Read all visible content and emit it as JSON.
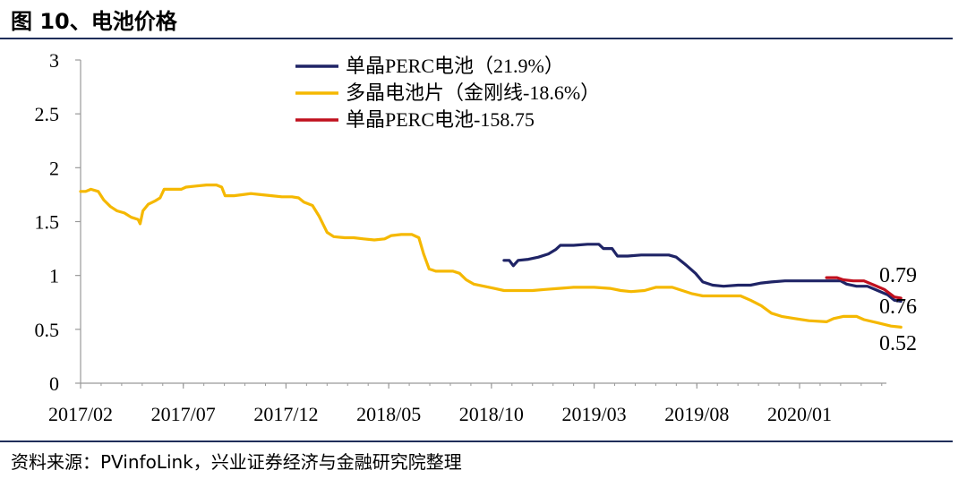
{
  "title": "图 10、电池价格",
  "source": "资料来源：PVinfoLink，兴业证券经济与金融研究院整理",
  "colors": {
    "accent_rule": "#1f2e5a",
    "mono": "#1f2466",
    "multi": "#f5b800",
    "mono158": "#c0101e"
  },
  "chart_data": {
    "type": "line",
    "ylim": [
      0,
      3
    ],
    "yticks": [
      "0",
      "0.5",
      "1",
      "1.5",
      "2",
      "2.5",
      "3"
    ],
    "x_range": [
      "2017-02",
      "2020-06"
    ],
    "xticks": [
      "2017/02",
      "2017/07",
      "2017/12",
      "2018/05",
      "2018/10",
      "2019/03",
      "2019/08",
      "2020/01"
    ],
    "legend_position": "top-center",
    "series": [
      {
        "name": "单晶PERC电池（21.9%）",
        "color": "#1f2466",
        "end_label": "0.76",
        "points": [
          [
            "2018-10-20",
            1.14
          ],
          [
            "2018-10-28",
            1.14
          ],
          [
            "2018-11-03",
            1.09
          ],
          [
            "2018-11-10",
            1.14
          ],
          [
            "2018-11-25",
            1.15
          ],
          [
            "2018-12-10",
            1.17
          ],
          [
            "2018-12-25",
            1.2
          ],
          [
            "2019-01-05",
            1.24
          ],
          [
            "2019-01-12",
            1.28
          ],
          [
            "2019-02-01",
            1.28
          ],
          [
            "2019-02-20",
            1.29
          ],
          [
            "2019-03-08",
            1.29
          ],
          [
            "2019-03-15",
            1.25
          ],
          [
            "2019-03-28",
            1.25
          ],
          [
            "2019-04-05",
            1.18
          ],
          [
            "2019-04-20",
            1.18
          ],
          [
            "2019-05-10",
            1.19
          ],
          [
            "2019-06-01",
            1.19
          ],
          [
            "2019-06-20",
            1.19
          ],
          [
            "2019-07-01",
            1.17
          ],
          [
            "2019-07-15",
            1.1
          ],
          [
            "2019-07-30",
            1.02
          ],
          [
            "2019-08-10",
            0.94
          ],
          [
            "2019-08-25",
            0.91
          ],
          [
            "2019-09-10",
            0.9
          ],
          [
            "2019-10-01",
            0.91
          ],
          [
            "2019-10-20",
            0.91
          ],
          [
            "2019-11-05",
            0.93
          ],
          [
            "2019-11-20",
            0.94
          ],
          [
            "2019-12-10",
            0.95
          ],
          [
            "2020-01-10",
            0.95
          ],
          [
            "2020-02-10",
            0.95
          ],
          [
            "2020-03-01",
            0.95
          ],
          [
            "2020-03-10",
            0.92
          ],
          [
            "2020-03-25",
            0.9
          ],
          [
            "2020-04-10",
            0.9
          ],
          [
            "2020-04-25",
            0.86
          ],
          [
            "2020-05-10",
            0.82
          ],
          [
            "2020-05-20",
            0.77
          ],
          [
            "2020-05-30",
            0.76
          ]
        ]
      },
      {
        "name": "多晶电池片（金刚线-18.6%）",
        "color": "#f5b800",
        "end_label": "0.52",
        "points": [
          [
            "2017-02-01",
            1.78
          ],
          [
            "2017-02-08",
            1.78
          ],
          [
            "2017-02-15",
            1.8
          ],
          [
            "2017-02-25",
            1.78
          ],
          [
            "2017-03-05",
            1.7
          ],
          [
            "2017-03-15",
            1.64
          ],
          [
            "2017-03-25",
            1.6
          ],
          [
            "2017-04-05",
            1.58
          ],
          [
            "2017-04-15",
            1.54
          ],
          [
            "2017-04-25",
            1.52
          ],
          [
            "2017-04-28",
            1.48
          ],
          [
            "2017-05-02",
            1.6
          ],
          [
            "2017-05-10",
            1.66
          ],
          [
            "2017-05-20",
            1.69
          ],
          [
            "2017-05-28",
            1.72
          ],
          [
            "2017-06-03",
            1.8
          ],
          [
            "2017-06-15",
            1.8
          ],
          [
            "2017-06-28",
            1.8
          ],
          [
            "2017-07-05",
            1.82
          ],
          [
            "2017-07-20",
            1.83
          ],
          [
            "2017-08-05",
            1.84
          ],
          [
            "2017-08-20",
            1.84
          ],
          [
            "2017-08-28",
            1.82
          ],
          [
            "2017-09-02",
            1.74
          ],
          [
            "2017-09-15",
            1.74
          ],
          [
            "2017-09-28",
            1.75
          ],
          [
            "2017-10-10",
            1.76
          ],
          [
            "2017-10-25",
            1.75
          ],
          [
            "2017-11-10",
            1.74
          ],
          [
            "2017-11-25",
            1.73
          ],
          [
            "2017-12-10",
            1.73
          ],
          [
            "2017-12-20",
            1.72
          ],
          [
            "2017-12-28",
            1.68
          ],
          [
            "2018-01-10",
            1.65
          ],
          [
            "2018-01-20",
            1.55
          ],
          [
            "2018-02-01",
            1.4
          ],
          [
            "2018-02-10",
            1.36
          ],
          [
            "2018-02-25",
            1.35
          ],
          [
            "2018-03-10",
            1.35
          ],
          [
            "2018-03-25",
            1.34
          ],
          [
            "2018-04-10",
            1.33
          ],
          [
            "2018-04-25",
            1.34
          ],
          [
            "2018-05-05",
            1.37
          ],
          [
            "2018-05-20",
            1.38
          ],
          [
            "2018-06-05",
            1.38
          ],
          [
            "2018-06-15",
            1.35
          ],
          [
            "2018-06-22",
            1.2
          ],
          [
            "2018-06-30",
            1.06
          ],
          [
            "2018-07-10",
            1.04
          ],
          [
            "2018-07-25",
            1.04
          ],
          [
            "2018-08-05",
            1.04
          ],
          [
            "2018-08-15",
            1.02
          ],
          [
            "2018-08-25",
            0.96
          ],
          [
            "2018-09-05",
            0.92
          ],
          [
            "2018-09-20",
            0.9
          ],
          [
            "2018-10-05",
            0.88
          ],
          [
            "2018-10-20",
            0.86
          ],
          [
            "2018-11-10",
            0.86
          ],
          [
            "2018-12-01",
            0.86
          ],
          [
            "2018-12-20",
            0.87
          ],
          [
            "2019-01-10",
            0.88
          ],
          [
            "2019-02-01",
            0.89
          ],
          [
            "2019-03-01",
            0.89
          ],
          [
            "2019-03-25",
            0.88
          ],
          [
            "2019-04-10",
            0.86
          ],
          [
            "2019-04-25",
            0.85
          ],
          [
            "2019-05-15",
            0.86
          ],
          [
            "2019-06-01",
            0.89
          ],
          [
            "2019-06-25",
            0.89
          ],
          [
            "2019-07-10",
            0.86
          ],
          [
            "2019-07-25",
            0.83
          ],
          [
            "2019-08-10",
            0.81
          ],
          [
            "2019-08-25",
            0.81
          ],
          [
            "2019-09-15",
            0.81
          ],
          [
            "2019-10-05",
            0.81
          ],
          [
            "2019-10-20",
            0.77
          ],
          [
            "2019-11-05",
            0.72
          ],
          [
            "2019-11-20",
            0.65
          ],
          [
            "2019-12-05",
            0.62
          ],
          [
            "2019-12-25",
            0.6
          ],
          [
            "2020-01-15",
            0.58
          ],
          [
            "2020-02-10",
            0.57
          ],
          [
            "2020-02-20",
            0.6
          ],
          [
            "2020-03-05",
            0.62
          ],
          [
            "2020-03-25",
            0.62
          ],
          [
            "2020-04-05",
            0.59
          ],
          [
            "2020-04-25",
            0.56
          ],
          [
            "2020-05-15",
            0.53
          ],
          [
            "2020-05-30",
            0.52
          ]
        ]
      },
      {
        "name": "单晶PERC电池-158.75",
        "color": "#c0101e",
        "end_label": "0.79",
        "points": [
          [
            "2020-02-10",
            0.98
          ],
          [
            "2020-02-25",
            0.98
          ],
          [
            "2020-03-05",
            0.96
          ],
          [
            "2020-03-20",
            0.95
          ],
          [
            "2020-04-05",
            0.95
          ],
          [
            "2020-04-20",
            0.91
          ],
          [
            "2020-05-05",
            0.87
          ],
          [
            "2020-05-20",
            0.8
          ],
          [
            "2020-05-30",
            0.79
          ]
        ]
      }
    ]
  }
}
